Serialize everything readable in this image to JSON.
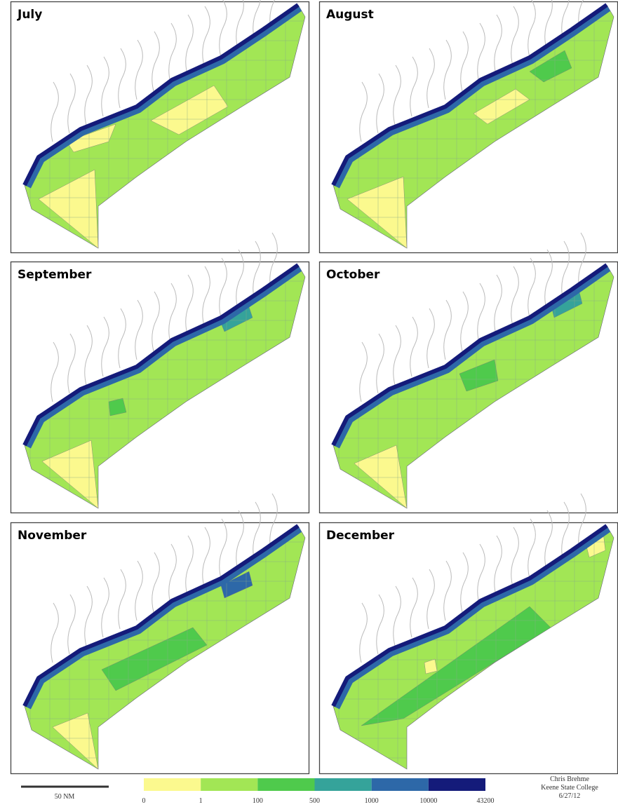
{
  "panels": [
    {
      "title": "July"
    },
    {
      "title": "August"
    },
    {
      "title": "September"
    },
    {
      "title": "October"
    },
    {
      "title": "November"
    },
    {
      "title": "December"
    }
  ],
  "legend": {
    "breaks": [
      0,
      1,
      100,
      500,
      1000,
      10000,
      43200
    ],
    "colors": [
      "#fbf98e",
      "#a2e655",
      "#4fca4c",
      "#35a39a",
      "#2d68a8",
      "#141b7a"
    ]
  },
  "scale_bar": {
    "label": "50 NM"
  },
  "credit": [
    "Chris Brehme",
    "Keene State College",
    "6/27/12"
  ]
}
